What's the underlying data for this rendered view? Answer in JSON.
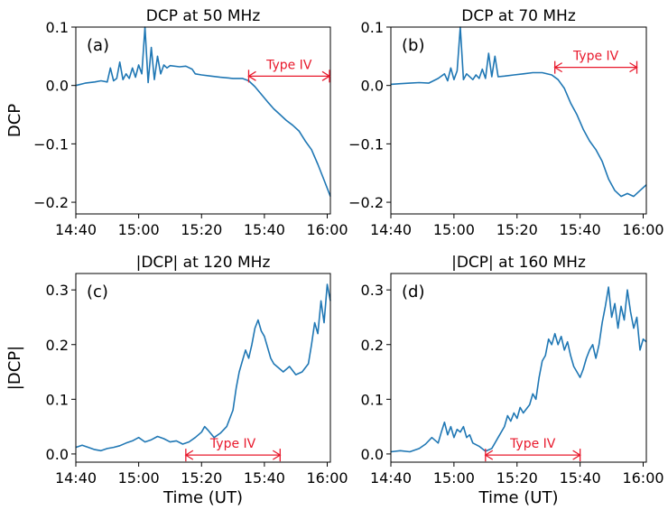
{
  "chart_data": [
    {
      "type": "line",
      "title": "DCP at 50 MHz",
      "panel_label": "(a)",
      "xlabel": "",
      "ylabel": "DCP",
      "xlim": [
        "14:40",
        "16:01"
      ],
      "ylim": [
        -0.22,
        0.1
      ],
      "xticks": [
        "14:40",
        "15:00",
        "15:20",
        "15:40",
        "16:00"
      ],
      "yticks": [
        0.1,
        0.0,
        -0.1,
        -0.2
      ],
      "ytick_labels": [
        "0.1",
        "0.0",
        "−0.1",
        "−0.2"
      ],
      "series_color": "#1f77b4",
      "annotation": {
        "text": "Type IV",
        "x_start": "15:35",
        "x_end": "16:01",
        "y": 0.016,
        "color": "#e8192c"
      },
      "points": [
        [
          "14:40",
          0.0
        ],
        [
          "14:43",
          0.004
        ],
        [
          "14:46",
          0.006
        ],
        [
          "14:48",
          0.008
        ],
        [
          "14:50",
          0.006
        ],
        [
          "14:51",
          0.03
        ],
        [
          "14:52",
          0.008
        ],
        [
          "14:53",
          0.012
        ],
        [
          "14:54",
          0.04
        ],
        [
          "14:55",
          0.01
        ],
        [
          "14:56",
          0.02
        ],
        [
          "14:57",
          0.012
        ],
        [
          "14:58",
          0.03
        ],
        [
          "14:59",
          0.014
        ],
        [
          "15:00",
          0.035
        ],
        [
          "15:01",
          0.02
        ],
        [
          "15:02",
          0.1
        ],
        [
          "15:03",
          0.005
        ],
        [
          "15:04",
          0.065
        ],
        [
          "15:05",
          0.01
        ],
        [
          "15:06",
          0.05
        ],
        [
          "15:07",
          0.02
        ],
        [
          "15:08",
          0.035
        ],
        [
          "15:09",
          0.03
        ],
        [
          "15:10",
          0.034
        ],
        [
          "15:13",
          0.032
        ],
        [
          "15:15",
          0.033
        ],
        [
          "15:17",
          0.028
        ],
        [
          "15:18",
          0.02
        ],
        [
          "15:20",
          0.018
        ],
        [
          "15:23",
          0.016
        ],
        [
          "15:26",
          0.014
        ],
        [
          "15:30",
          0.012
        ],
        [
          "15:33",
          0.012
        ],
        [
          "15:35",
          0.008
        ],
        [
          "15:37",
          -0.002
        ],
        [
          "15:39",
          -0.015
        ],
        [
          "15:41",
          -0.028
        ],
        [
          "15:43",
          -0.04
        ],
        [
          "15:45",
          -0.05
        ],
        [
          "15:47",
          -0.06
        ],
        [
          "15:49",
          -0.068
        ],
        [
          "15:51",
          -0.078
        ],
        [
          "15:53",
          -0.095
        ],
        [
          "15:55",
          -0.11
        ],
        [
          "15:57",
          -0.135
        ],
        [
          "15:59",
          -0.162
        ],
        [
          "16:01",
          -0.19
        ]
      ]
    },
    {
      "type": "line",
      "title": "DCP at 70 MHz",
      "panel_label": "(b)",
      "xlabel": "",
      "ylabel": "",
      "xlim": [
        "14:40",
        "16:01"
      ],
      "ylim": [
        -0.22,
        0.1
      ],
      "xticks": [
        "14:40",
        "15:00",
        "15:20",
        "15:40",
        "16:00"
      ],
      "yticks": [
        0.1,
        0.0,
        -0.1,
        -0.2
      ],
      "ytick_labels": [
        "0.1",
        "0.0",
        "−0.1",
        "−0.2"
      ],
      "series_color": "#1f77b4",
      "annotation": {
        "text": "Type IV",
        "x_start": "15:32",
        "x_end": "15:58",
        "y": 0.031,
        "color": "#e8192c"
      },
      "points": [
        [
          "14:40",
          0.002
        ],
        [
          "14:43",
          0.003
        ],
        [
          "14:46",
          0.004
        ],
        [
          "14:49",
          0.005
        ],
        [
          "14:52",
          0.004
        ],
        [
          "14:55",
          0.012
        ],
        [
          "14:57",
          0.02
        ],
        [
          "14:58",
          0.008
        ],
        [
          "14:59",
          0.03
        ],
        [
          "15:00",
          0.01
        ],
        [
          "15:01",
          0.025
        ],
        [
          "15:02",
          0.1
        ],
        [
          "15:03",
          0.01
        ],
        [
          "15:04",
          0.02
        ],
        [
          "15:06",
          0.01
        ],
        [
          "15:07",
          0.018
        ],
        [
          "15:08",
          0.012
        ],
        [
          "15:09",
          0.028
        ],
        [
          "15:10",
          0.012
        ],
        [
          "15:11",
          0.055
        ],
        [
          "15:12",
          0.015
        ],
        [
          "15:13",
          0.05
        ],
        [
          "15:14",
          0.015
        ],
        [
          "15:16",
          0.016
        ],
        [
          "15:19",
          0.018
        ],
        [
          "15:22",
          0.02
        ],
        [
          "15:25",
          0.022
        ],
        [
          "15:28",
          0.022
        ],
        [
          "15:31",
          0.018
        ],
        [
          "15:33",
          0.01
        ],
        [
          "15:35",
          -0.005
        ],
        [
          "15:37",
          -0.03
        ],
        [
          "15:39",
          -0.05
        ],
        [
          "15:41",
          -0.075
        ],
        [
          "15:43",
          -0.095
        ],
        [
          "15:45",
          -0.11
        ],
        [
          "15:47",
          -0.13
        ],
        [
          "15:49",
          -0.16
        ],
        [
          "15:51",
          -0.18
        ],
        [
          "15:53",
          -0.19
        ],
        [
          "15:55",
          -0.185
        ],
        [
          "15:57",
          -0.19
        ],
        [
          "15:59",
          -0.18
        ],
        [
          "16:01",
          -0.17
        ]
      ]
    },
    {
      "type": "line",
      "title": "|DCP| at 120 MHz",
      "panel_label": "(c)",
      "xlabel": "Time (UT)",
      "ylabel": "|DCP|",
      "xlim": [
        "14:40",
        "16:01"
      ],
      "ylim": [
        -0.015,
        0.33
      ],
      "xticks": [
        "14:40",
        "15:00",
        "15:20",
        "15:40",
        "16:00"
      ],
      "yticks": [
        0.0,
        0.1,
        0.2,
        0.3
      ],
      "ytick_labels": [
        "0.0",
        "0.1",
        "0.2",
        "0.3"
      ],
      "series_color": "#1f77b4",
      "annotation": {
        "text": "Type IV",
        "x_start": "15:15",
        "x_end": "15:45",
        "y": -0.002,
        "color": "#e8192c"
      },
      "points": [
        [
          "14:40",
          0.012
        ],
        [
          "14:42",
          0.016
        ],
        [
          "14:44",
          0.012
        ],
        [
          "14:46",
          0.008
        ],
        [
          "14:48",
          0.006
        ],
        [
          "14:50",
          0.01
        ],
        [
          "14:52",
          0.012
        ],
        [
          "14:54",
          0.015
        ],
        [
          "14:56",
          0.02
        ],
        [
          "14:58",
          0.024
        ],
        [
          "15:00",
          0.03
        ],
        [
          "15:02",
          0.022
        ],
        [
          "15:04",
          0.026
        ],
        [
          "15:06",
          0.032
        ],
        [
          "15:08",
          0.028
        ],
        [
          "15:10",
          0.022
        ],
        [
          "15:12",
          0.024
        ],
        [
          "15:14",
          0.018
        ],
        [
          "15:16",
          0.022
        ],
        [
          "15:18",
          0.03
        ],
        [
          "15:20",
          0.04
        ],
        [
          "15:21",
          0.05
        ],
        [
          "15:22",
          0.044
        ],
        [
          "15:24",
          0.03
        ],
        [
          "15:26",
          0.038
        ],
        [
          "15:28",
          0.05
        ],
        [
          "15:30",
          0.08
        ],
        [
          "15:31",
          0.12
        ],
        [
          "15:32",
          0.15
        ],
        [
          "15:33",
          0.17
        ],
        [
          "15:34",
          0.19
        ],
        [
          "15:35",
          0.175
        ],
        [
          "15:36",
          0.2
        ],
        [
          "15:37",
          0.23
        ],
        [
          "15:38",
          0.245
        ],
        [
          "15:39",
          0.225
        ],
        [
          "15:40",
          0.215
        ],
        [
          "15:41",
          0.195
        ],
        [
          "15:42",
          0.175
        ],
        [
          "15:43",
          0.165
        ],
        [
          "15:44",
          0.16
        ],
        [
          "15:46",
          0.15
        ],
        [
          "15:48",
          0.16
        ],
        [
          "15:50",
          0.145
        ],
        [
          "15:52",
          0.15
        ],
        [
          "15:54",
          0.165
        ],
        [
          "15:55",
          0.2
        ],
        [
          "15:56",
          0.24
        ],
        [
          "15:57",
          0.22
        ],
        [
          "15:58",
          0.28
        ],
        [
          "15:59",
          0.24
        ],
        [
          "16:00",
          0.31
        ],
        [
          "16:01",
          0.28
        ]
      ]
    },
    {
      "type": "line",
      "title": "|DCP| at 160 MHz",
      "panel_label": "(d)",
      "xlabel": "Time (UT)",
      "ylabel": "",
      "xlim": [
        "14:40",
        "16:01"
      ],
      "ylim": [
        -0.015,
        0.33
      ],
      "xticks": [
        "14:40",
        "15:00",
        "15:20",
        "15:40",
        "16:00"
      ],
      "yticks": [
        0.0,
        0.1,
        0.2,
        0.3
      ],
      "ytick_labels": [
        "0.0",
        "0.1",
        "0.2",
        "0.3"
      ],
      "series_color": "#1f77b4",
      "annotation": {
        "text": "Type IV",
        "x_start": "15:10",
        "x_end": "15:40",
        "y": -0.002,
        "color": "#e8192c"
      },
      "points": [
        [
          "14:40",
          0.004
        ],
        [
          "14:43",
          0.006
        ],
        [
          "14:46",
          0.004
        ],
        [
          "14:49",
          0.01
        ],
        [
          "14:51",
          0.018
        ],
        [
          "14:53",
          0.03
        ],
        [
          "14:55",
          0.02
        ],
        [
          "14:56",
          0.04
        ],
        [
          "14:57",
          0.058
        ],
        [
          "14:58",
          0.035
        ],
        [
          "14:59",
          0.05
        ],
        [
          "15:00",
          0.03
        ],
        [
          "15:01",
          0.045
        ],
        [
          "15:02",
          0.04
        ],
        [
          "15:03",
          0.05
        ],
        [
          "15:04",
          0.03
        ],
        [
          "15:05",
          0.035
        ],
        [
          "15:06",
          0.02
        ],
        [
          "15:08",
          0.014
        ],
        [
          "15:10",
          0.005
        ],
        [
          "15:12",
          0.01
        ],
        [
          "15:14",
          0.03
        ],
        [
          "15:16",
          0.05
        ],
        [
          "15:17",
          0.07
        ],
        [
          "15:18",
          0.06
        ],
        [
          "15:19",
          0.075
        ],
        [
          "15:20",
          0.065
        ],
        [
          "15:21",
          0.085
        ],
        [
          "15:22",
          0.075
        ],
        [
          "15:24",
          0.09
        ],
        [
          "15:25",
          0.11
        ],
        [
          "15:26",
          0.1
        ],
        [
          "15:27",
          0.14
        ],
        [
          "15:28",
          0.17
        ],
        [
          "15:29",
          0.18
        ],
        [
          "15:30",
          0.21
        ],
        [
          "15:31",
          0.2
        ],
        [
          "15:32",
          0.22
        ],
        [
          "15:33",
          0.2
        ],
        [
          "15:34",
          0.215
        ],
        [
          "15:35",
          0.19
        ],
        [
          "15:36",
          0.205
        ],
        [
          "15:37",
          0.18
        ],
        [
          "15:38",
          0.16
        ],
        [
          "15:39",
          0.15
        ],
        [
          "15:40",
          0.14
        ],
        [
          "15:41",
          0.155
        ],
        [
          "15:42",
          0.175
        ],
        [
          "15:43",
          0.19
        ],
        [
          "15:44",
          0.2
        ],
        [
          "15:45",
          0.175
        ],
        [
          "15:46",
          0.2
        ],
        [
          "15:47",
          0.24
        ],
        [
          "15:48",
          0.27
        ],
        [
          "15:49",
          0.305
        ],
        [
          "15:50",
          0.25
        ],
        [
          "15:51",
          0.275
        ],
        [
          "15:52",
          0.23
        ],
        [
          "15:53",
          0.27
        ],
        [
          "15:54",
          0.245
        ],
        [
          "15:55",
          0.3
        ],
        [
          "15:56",
          0.26
        ],
        [
          "15:57",
          0.23
        ],
        [
          "15:58",
          0.25
        ],
        [
          "15:59",
          0.19
        ],
        [
          "16:00",
          0.21
        ],
        [
          "16:01",
          0.205
        ]
      ]
    }
  ]
}
